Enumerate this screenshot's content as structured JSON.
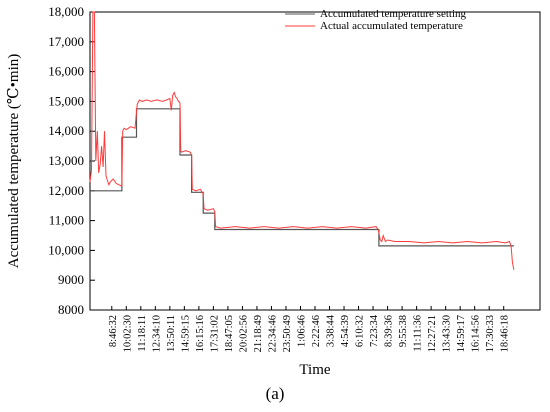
{
  "chart_data": {
    "type": "line",
    "xlabel": "Time",
    "ylabel": "Accumulated temperature (℃•min)",
    "panel_label": "(a)",
    "ylim": [
      8000,
      18000
    ],
    "yticks": [
      8000,
      9000,
      10000,
      11000,
      12000,
      13000,
      14000,
      15000,
      16000,
      17000,
      18000
    ],
    "ytick_labels": [
      "8000",
      "9000",
      "10,000",
      "11,000",
      "12,000",
      "13,000",
      "14,000",
      "15,000",
      "16,000",
      "17,000",
      "18,000"
    ],
    "xlim": [
      0,
      31
    ],
    "x_categories": [
      "8:46:32",
      "10:02:30",
      "11:18:11",
      "12:34:10",
      "13:50:11",
      "14:59:15",
      "16:15:16",
      "17:31:02",
      "18:47:05",
      "20:02:56",
      "21:18:49",
      "22:34:46",
      "23:50:49",
      "1:06:46",
      "2:22:46",
      "3:38:44",
      "4:54:39",
      "6:10:32",
      "7:23:34",
      "8:39:36",
      "9:55:38",
      "11:11:36",
      "12:27:21",
      "13:43:30",
      "14:59:17",
      "16:14:56",
      "17:30:33",
      "18:46:18"
    ],
    "legend_position": "top-right",
    "grid": false,
    "colors": {
      "setting": "#555555",
      "actual": "#ff3b3b"
    },
    "series": [
      {
        "name": "Accumulated temperature setting",
        "x": [
          0,
          2.2,
          2.2,
          3.2,
          3.2,
          6.2,
          6.2,
          7.0,
          7.0,
          7.8,
          7.8,
          8.6,
          8.6,
          19.9,
          19.9,
          29.2
        ],
        "values": [
          12000,
          12000,
          13800,
          13800,
          14750,
          14750,
          13200,
          13200,
          11950,
          11950,
          11250,
          11250,
          10700,
          10700,
          10150,
          10150
        ]
      },
      {
        "name": "Actual accumulated temperature",
        "x": [
          0,
          0.1,
          0.2,
          0.3,
          0.4,
          0.5,
          0.6,
          0.7,
          0.8,
          0.9,
          1.0,
          1.1,
          1.2,
          1.3,
          1.4,
          1.6,
          1.8,
          2.0,
          2.2,
          2.25,
          2.35,
          2.5,
          2.8,
          3.1,
          3.25,
          3.4,
          3.6,
          3.9,
          4.2,
          4.6,
          5.0,
          5.3,
          5.5,
          5.6,
          5.7,
          5.8,
          5.9,
          6.0,
          6.1,
          6.2,
          6.25,
          6.3,
          6.6,
          6.9,
          7.0,
          7.05,
          7.3,
          7.6,
          7.8,
          7.85,
          8.1,
          8.5,
          8.6,
          8.65,
          9.0,
          10.0,
          11.0,
          12.0,
          13.0,
          14.0,
          15.0,
          16.0,
          17.0,
          18.0,
          19.0,
          19.7,
          19.85,
          19.9,
          20.0,
          20.1,
          20.2,
          20.35,
          20.5,
          21.0,
          22.0,
          23.0,
          24.0,
          25.0,
          26.0,
          27.0,
          28.0,
          28.6,
          28.9,
          29.0,
          29.05,
          29.1,
          29.2
        ],
        "values": [
          12300,
          12700,
          18000,
          18000,
          13000,
          14000,
          12600,
          12900,
          13500,
          12800,
          14000,
          12500,
          12350,
          12200,
          12300,
          12400,
          12250,
          12200,
          12150,
          14000,
          14100,
          14050,
          14150,
          14100,
          14900,
          15050,
          15000,
          15050,
          15000,
          15050,
          15000,
          15050,
          15100,
          14700,
          15200,
          15300,
          15150,
          15100,
          15000,
          14950,
          13350,
          13300,
          13350,
          13300,
          13200,
          12050,
          12000,
          12050,
          11900,
          11400,
          11350,
          11400,
          11300,
          10800,
          10750,
          10800,
          10750,
          10800,
          10750,
          10800,
          10750,
          10800,
          10750,
          10800,
          10750,
          10800,
          10700,
          10600,
          10350,
          10300,
          10500,
          10300,
          10350,
          10300,
          10300,
          10250,
          10300,
          10250,
          10300,
          10250,
          10300,
          10250,
          10300,
          10150,
          9900,
          9600,
          9350
        ]
      }
    ]
  }
}
